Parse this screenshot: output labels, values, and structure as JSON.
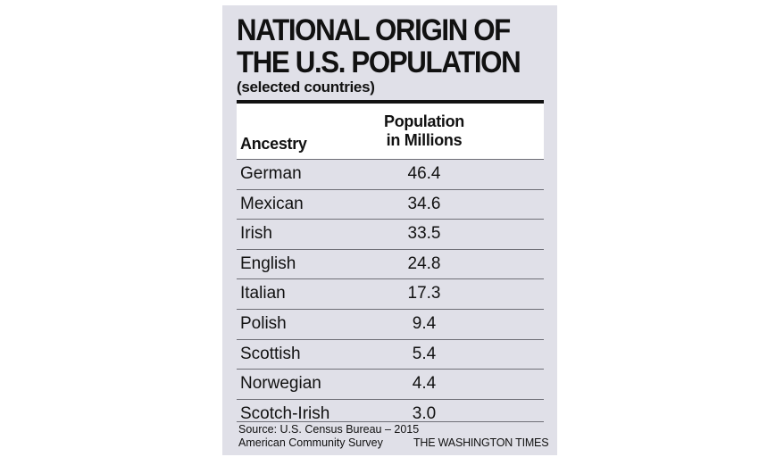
{
  "header": {
    "title_line1": "NATIONAL ORIGIN OF",
    "title_line2": "THE U.S. POPULATION",
    "subtitle": "(selected countries)"
  },
  "table": {
    "col_ancestry": "Ancestry",
    "col_pop_line1": "Population",
    "col_pop_line2": "in Millions"
  },
  "footer": {
    "source_line1": "Source: U.S. Census Bureau – 2015",
    "source_line2": "American Community Survey",
    "credit": "THE WASHINGTON TIMES"
  },
  "chart_data": {
    "type": "table",
    "title": "NATIONAL ORIGIN OF THE U.S. POPULATION",
    "subtitle": "(selected countries)",
    "columns": [
      "Ancestry",
      "Population in Millions"
    ],
    "rows": [
      {
        "ancestry": "German",
        "value": "46.4"
      },
      {
        "ancestry": "Mexican",
        "value": "34.6"
      },
      {
        "ancestry": "Irish",
        "value": "33.5"
      },
      {
        "ancestry": "English",
        "value": "24.8"
      },
      {
        "ancestry": "Italian",
        "value": "17.3"
      },
      {
        "ancestry": "Polish",
        "value": "9.4"
      },
      {
        "ancestry": "Scottish",
        "value": "5.4"
      },
      {
        "ancestry": "Norwegian",
        "value": "4.4"
      },
      {
        "ancestry": "Scotch-Irish",
        "value": "3.0"
      }
    ]
  }
}
